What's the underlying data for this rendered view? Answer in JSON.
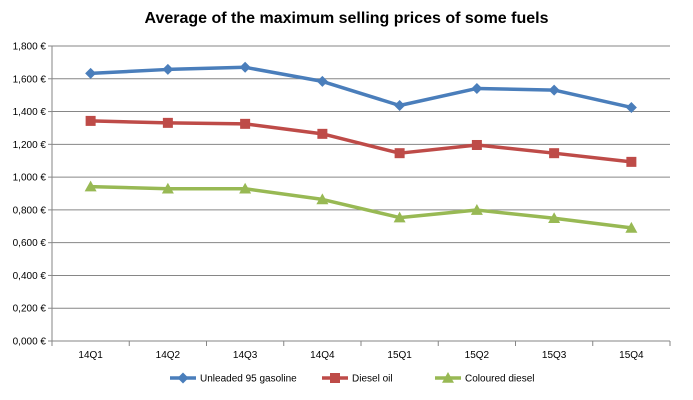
{
  "chart_data": {
    "type": "line",
    "title": "Average of the maximum selling prices of some fuels",
    "categories": [
      "14Q1",
      "14Q2",
      "14Q3",
      "14Q4",
      "15Q1",
      "15Q2",
      "15Q3",
      "15Q4"
    ],
    "ylim": [
      0,
      1.8
    ],
    "yticks": [
      0,
      0.2,
      0.4,
      0.6,
      0.8,
      1.0,
      1.2,
      1.4,
      1.6,
      1.8
    ],
    "ytick_labels": [
      "0,000 €",
      "0,200 €",
      "0,400 €",
      "0,600 €",
      "0,800 €",
      "1,000 €",
      "1,200 €",
      "1,400 €",
      "1,600 €",
      "1,800 €"
    ],
    "grid": "horizontal",
    "legend": "bottom",
    "series": [
      {
        "name": "Unleaded 95 gasoline",
        "color": "#4a7ebb",
        "marker": "diamond",
        "values": [
          1.633,
          1.657,
          1.67,
          1.584,
          1.437,
          1.541,
          1.531,
          1.425
        ]
      },
      {
        "name": "Diesel oil",
        "color": "#be4b48",
        "marker": "square",
        "values": [
          1.343,
          1.331,
          1.325,
          1.264,
          1.146,
          1.196,
          1.146,
          1.093
        ]
      },
      {
        "name": "Coloured diesel",
        "color": "#98b954",
        "marker": "triangle",
        "values": [
          0.942,
          0.929,
          0.929,
          0.864,
          0.753,
          0.799,
          0.749,
          0.69
        ]
      }
    ]
  }
}
